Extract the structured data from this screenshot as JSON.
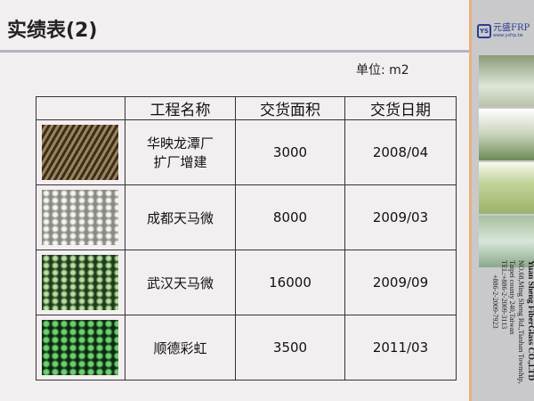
{
  "title": "实绩表(2)",
  "unit": "单位: m2",
  "logo": {
    "badge": "YS",
    "name": "元盛FRP",
    "url": "www.ysfrp.tw"
  },
  "company": [
    "Yuan Sheng FiberGlass CO.,LTD",
    "NO.68,Ming Sheng Rd.,Tiashan Township,",
    "Taipei county 240,Taiwan",
    "TEL:+886-2-2009-3113",
    "+886-2-2009-7923"
  ],
  "table": {
    "headers": [
      "",
      "工程名称",
      "交货面积",
      "交货日期"
    ],
    "rows": [
      {
        "name_l1": "华映龙潭厂",
        "name_l2": "扩厂增建",
        "area": "3000",
        "date": "2008/04"
      },
      {
        "name_l1": "成都天马微",
        "name_l2": "",
        "area": "8000",
        "date": "2009/03"
      },
      {
        "name_l1": "武汉天马微",
        "name_l2": "",
        "area": "16000",
        "date": "2009/09"
      },
      {
        "name_l1": "顺德彩虹",
        "name_l2": "",
        "area": "3500",
        "date": "2011/03"
      }
    ]
  }
}
